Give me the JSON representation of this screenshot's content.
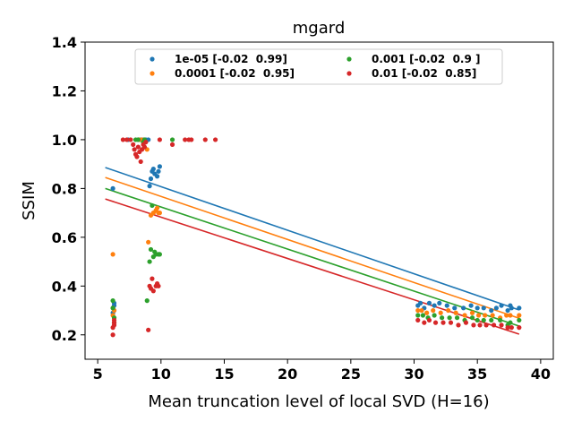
{
  "chart_data": {
    "type": "scatter",
    "title": "mgard",
    "xlabel": "Mean truncation level of local SVD (H=16)",
    "ylabel": "SSIM",
    "xlim": [
      4,
      41
    ],
    "ylim": [
      0.1,
      1.4
    ],
    "xticks": [
      "5",
      "10",
      "15",
      "20",
      "25",
      "30",
      "35",
      "40"
    ],
    "yticks": [
      "0.2",
      "0.4",
      "0.6",
      "0.8",
      "1.0",
      "1.2",
      "1.4"
    ],
    "grid": false,
    "legend": {
      "placement": "top-center",
      "columns": 2
    },
    "series": [
      {
        "name": "1e-05 [-0.02  0.99]",
        "color": "#1f77b4",
        "points": [
          [
            6.2,
            0.8
          ],
          [
            6.3,
            0.33
          ],
          [
            6.3,
            0.3
          ],
          [
            6.2,
            0.31
          ],
          [
            6.3,
            0.32
          ],
          [
            6.2,
            0.29
          ],
          [
            8.4,
            1.0
          ],
          [
            8.6,
            1.0
          ],
          [
            8.8,
            1.0
          ],
          [
            9.0,
            1.0
          ],
          [
            9.1,
            0.81
          ],
          [
            9.2,
            0.84
          ],
          [
            9.3,
            0.87
          ],
          [
            9.4,
            0.88
          ],
          [
            9.5,
            0.86
          ],
          [
            9.7,
            0.85
          ],
          [
            9.8,
            0.87
          ],
          [
            9.9,
            0.89
          ],
          [
            8.2,
            1.0
          ],
          [
            7.4,
            1.0
          ],
          [
            30.3,
            0.32
          ],
          [
            30.5,
            0.33
          ],
          [
            30.8,
            0.31
          ],
          [
            31.2,
            0.33
          ],
          [
            31.6,
            0.32
          ],
          [
            32.0,
            0.33
          ],
          [
            32.6,
            0.32
          ],
          [
            33.2,
            0.31
          ],
          [
            33.9,
            0.31
          ],
          [
            34.5,
            0.32
          ],
          [
            35.0,
            0.31
          ],
          [
            35.5,
            0.31
          ],
          [
            36.1,
            0.3
          ],
          [
            36.5,
            0.31
          ],
          [
            36.9,
            0.32
          ],
          [
            37.4,
            0.3
          ],
          [
            37.7,
            0.31
          ],
          [
            38.3,
            0.31
          ],
          [
            37.6,
            0.32
          ]
        ],
        "trend": [
          [
            5.6,
            0.886
          ],
          [
            38.3,
            0.302
          ]
        ]
      },
      {
        "name": "0.0001 [-0.02  0.95]",
        "color": "#ff7f0e",
        "points": [
          [
            6.2,
            0.53
          ],
          [
            6.2,
            0.28
          ],
          [
            6.3,
            0.27
          ],
          [
            6.3,
            0.3
          ],
          [
            6.2,
            0.31
          ],
          [
            8.5,
            1.0
          ],
          [
            8.7,
            0.99
          ],
          [
            8.9,
            0.96
          ],
          [
            9.0,
            0.58
          ],
          [
            9.2,
            0.69
          ],
          [
            9.4,
            0.7
          ],
          [
            9.6,
            0.71
          ],
          [
            9.7,
            0.72
          ],
          [
            9.8,
            0.7
          ],
          [
            9.9,
            0.7
          ],
          [
            8.3,
            1.0
          ],
          [
            30.3,
            0.3
          ],
          [
            30.6,
            0.3
          ],
          [
            31.0,
            0.29
          ],
          [
            31.5,
            0.3
          ],
          [
            32.1,
            0.29
          ],
          [
            32.7,
            0.3
          ],
          [
            33.3,
            0.29
          ],
          [
            34.0,
            0.28
          ],
          [
            34.6,
            0.29
          ],
          [
            35.1,
            0.28
          ],
          [
            35.6,
            0.28
          ],
          [
            36.2,
            0.28
          ],
          [
            36.8,
            0.27
          ],
          [
            37.3,
            0.28
          ],
          [
            37.6,
            0.28
          ],
          [
            38.3,
            0.28
          ]
        ],
        "trend": [
          [
            5.6,
            0.845
          ],
          [
            38.3,
            0.268
          ]
        ]
      },
      {
        "name": "0.001 [-0.02  0.9 ]",
        "color": "#2ca02c",
        "points": [
          [
            6.2,
            0.34
          ],
          [
            6.2,
            0.31
          ],
          [
            6.3,
            0.27
          ],
          [
            6.3,
            0.25
          ],
          [
            8.0,
            1.0
          ],
          [
            8.2,
            1.0
          ],
          [
            8.6,
            0.99
          ],
          [
            8.7,
            1.0
          ],
          [
            8.9,
            0.34
          ],
          [
            9.1,
            0.5
          ],
          [
            9.2,
            0.55
          ],
          [
            9.3,
            0.73
          ],
          [
            9.4,
            0.52
          ],
          [
            9.5,
            0.54
          ],
          [
            9.6,
            0.53
          ],
          [
            9.8,
            0.53
          ],
          [
            9.9,
            0.53
          ],
          [
            10.9,
            1.0
          ],
          [
            30.3,
            0.28
          ],
          [
            30.7,
            0.28
          ],
          [
            31.1,
            0.27
          ],
          [
            31.6,
            0.28
          ],
          [
            32.2,
            0.27
          ],
          [
            32.8,
            0.27
          ],
          [
            33.4,
            0.27
          ],
          [
            34.0,
            0.26
          ],
          [
            34.6,
            0.27
          ],
          [
            35.0,
            0.26
          ],
          [
            35.5,
            0.26
          ],
          [
            36.1,
            0.26
          ],
          [
            36.8,
            0.26
          ],
          [
            37.4,
            0.24
          ],
          [
            37.6,
            0.25
          ],
          [
            38.3,
            0.26
          ]
        ],
        "trend": [
          [
            5.6,
            0.8
          ],
          [
            38.3,
            0.236
          ]
        ]
      },
      {
        "name": "0.01 [-0.02  0.85]",
        "color": "#d62728",
        "points": [
          [
            6.2,
            0.2
          ],
          [
            6.2,
            0.23
          ],
          [
            6.3,
            0.25
          ],
          [
            6.3,
            0.24
          ],
          [
            6.3,
            0.26
          ],
          [
            7.0,
            1.0
          ],
          [
            7.3,
            1.0
          ],
          [
            7.6,
            1.0
          ],
          [
            7.8,
            0.98
          ],
          [
            7.9,
            0.96
          ],
          [
            8.0,
            0.94
          ],
          [
            8.1,
            0.93
          ],
          [
            8.2,
            0.97
          ],
          [
            8.3,
            0.95
          ],
          [
            8.4,
            0.91
          ],
          [
            8.5,
            0.96
          ],
          [
            8.6,
            0.98
          ],
          [
            8.7,
            0.97
          ],
          [
            8.8,
            0.99
          ],
          [
            9.0,
            0.22
          ],
          [
            9.1,
            0.4
          ],
          [
            9.2,
            0.39
          ],
          [
            9.3,
            0.43
          ],
          [
            9.4,
            0.38
          ],
          [
            9.6,
            0.4
          ],
          [
            9.7,
            0.41
          ],
          [
            9.8,
            0.4
          ],
          [
            9.9,
            1.0
          ],
          [
            10.9,
            0.98
          ],
          [
            11.9,
            1.0
          ],
          [
            12.2,
            1.0
          ],
          [
            12.4,
            1.0
          ],
          [
            13.5,
            1.0
          ],
          [
            14.3,
            1.0
          ],
          [
            30.3,
            0.26
          ],
          [
            30.8,
            0.25
          ],
          [
            31.2,
            0.26
          ],
          [
            31.7,
            0.25
          ],
          [
            32.3,
            0.25
          ],
          [
            32.9,
            0.25
          ],
          [
            33.5,
            0.24
          ],
          [
            34.1,
            0.25
          ],
          [
            34.7,
            0.24
          ],
          [
            35.2,
            0.24
          ],
          [
            35.7,
            0.24
          ],
          [
            36.3,
            0.24
          ],
          [
            36.9,
            0.24
          ],
          [
            37.4,
            0.23
          ],
          [
            37.7,
            0.23
          ],
          [
            38.3,
            0.23
          ]
        ],
        "trend": [
          [
            5.6,
            0.757
          ],
          [
            38.3,
            0.203
          ]
        ]
      }
    ]
  }
}
